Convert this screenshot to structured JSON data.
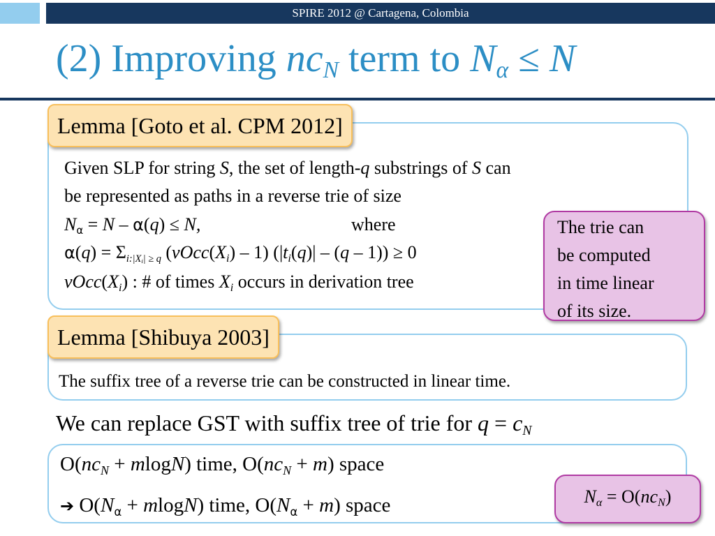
{
  "header": {
    "conference": "SPIRE 2012 @ Cartagena, Colombia"
  },
  "title": {
    "prefix": "(2) Improving ",
    "nc": "nc",
    "nc_sub": "N",
    "middle": " term to ",
    "N": "N",
    "alpha": "α",
    "leq": " ≤ ",
    "N2": "N"
  },
  "lemma1": {
    "heading": "Lemma [Goto et al. CPM 2012]",
    "line1": {
      "t1": "Given SLP for string ",
      "S": "S",
      "t2": ", the set of length-",
      "q": "q",
      "t3": " substrings of ",
      "S2": "S",
      "t4": " can"
    },
    "line2": "be represented as paths in a reverse trie of size",
    "line3": {
      "N": "N",
      "alpha_sub": "α",
      "eq": " = ",
      "N2": "N",
      "minus": " – ",
      "alpha": "α",
      "q_open": "(",
      "q": "q",
      "q_close": ") ≤ ",
      "N3": "N,",
      "where": "where"
    },
    "line4": {
      "alpha": "α",
      "open": "(",
      "q": "q",
      "close_eq": ") = Σ",
      "sum_sub": "i:|X",
      "sum_sub_i": "i",
      "sum_sub_rest": "| ≥ q",
      "space": " (",
      "vOcc": "vOcc",
      "p1": "(",
      "X": "X",
      "i": "i",
      "p2": ") – 1) (|",
      "t": "t",
      "ti": "i",
      "p3": "(",
      "q2": "q",
      "p4": ")| – (",
      "q3": "q",
      "p5": " – 1)) ≥ 0"
    },
    "line5": {
      "vOcc": "vOcc",
      "p1": "(",
      "X": "X",
      "i": "i",
      "p2": ") : # of times ",
      "X2": "X",
      "i2": "i",
      "rest": " occurs in derivation tree"
    }
  },
  "note1": {
    "line1": "The trie can",
    "line2": "be computed",
    "line3": "in time linear",
    "line4": "of its size."
  },
  "lemma2": {
    "heading": "Lemma [Shibuya 2003]",
    "text": "The suffix tree of a reverse trie can be constructed in linear time."
  },
  "statement": {
    "text": "We can replace GST with suffix tree of trie for ",
    "q": "q",
    "eq": " = ",
    "c": "c",
    "c_sub": "N"
  },
  "complexity": {
    "line1": {
      "o1": "O(",
      "nc": "nc",
      "nc_sub": "N",
      "plus": " + ",
      "m": "m",
      "log": "log",
      "N": "N",
      "t1": ") time, O(",
      "nc2": "nc",
      "nc2_sub": "N",
      "plus2": " + ",
      "m2": "m",
      "t2": ") space"
    },
    "line2": {
      "arrow": "➔",
      "o1": " O(",
      "N": "N",
      "alpha": "α",
      "plus": " + ",
      "m": "m",
      "log": "log",
      "N2": "N",
      "t1": ") time, O(",
      "N3": "N",
      "alpha2": "α",
      "plus2": " + ",
      "m2": "m",
      "t2": ") space"
    }
  },
  "note2": {
    "N": "N",
    "alpha": "α",
    "eq": " = O(",
    "nc": "nc",
    "nc_sub": "N",
    "close": ")"
  },
  "colors": {
    "banner": "#17375e",
    "banner_square": "#93cdee",
    "title": "#2c8ec5",
    "box_border": "#93cdee",
    "lemma_tab_fill": "#fde3b3",
    "lemma_tab_border": "#f8bf5b",
    "note_fill": "#e8c3e6",
    "note_border": "#b03aa3"
  }
}
